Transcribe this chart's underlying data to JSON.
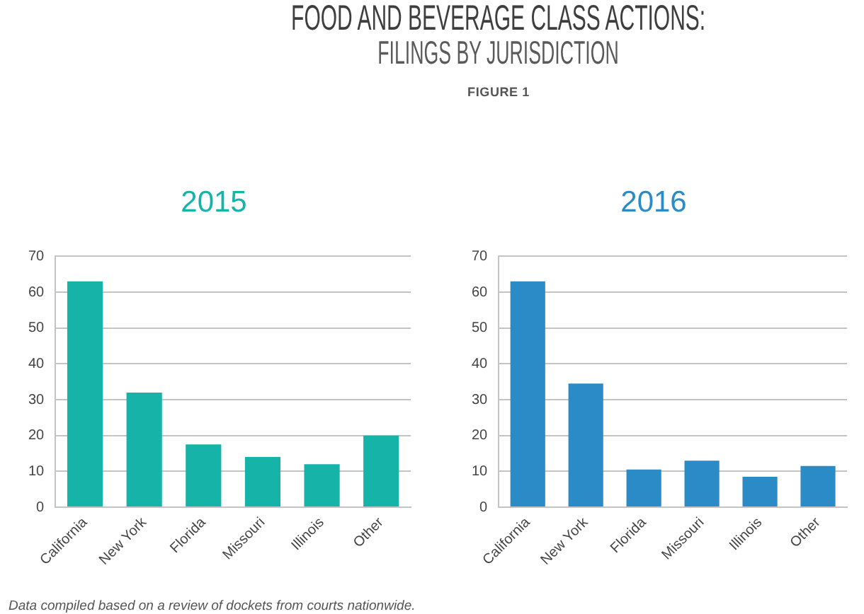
{
  "chart_data": [
    {
      "type": "other",
      "title": "FOOD AND BEVERAGE CLASS ACTIONS:",
      "subtitle": "FILINGS BY JURISDICTION",
      "annotations": [
        "FIGURE 1",
        "Data compiled based on a review of dockets from courts nationwide."
      ]
    },
    {
      "type": "bar",
      "title": "2015",
      "categories": [
        "California",
        "New York",
        "Florida",
        "Missouri",
        "Illinois",
        "Other"
      ],
      "values": [
        63,
        32,
        17.5,
        14,
        12,
        20
      ],
      "color": "#16b3a8",
      "ylim": [
        0,
        70
      ],
      "yticks": [
        0,
        10,
        20,
        30,
        40,
        50,
        60,
        70
      ],
      "grid": "y"
    },
    {
      "type": "bar",
      "title": "2016",
      "categories": [
        "California",
        "New York",
        "Florida",
        "Missouri",
        "Illinois",
        "Other"
      ],
      "values": [
        63,
        34.5,
        10.5,
        13,
        8.5,
        11.5
      ],
      "color": "#2a8bc6",
      "ylim": [
        0,
        70
      ],
      "yticks": [
        0,
        10,
        20,
        30,
        40,
        50,
        60,
        70
      ],
      "grid": "y"
    }
  ]
}
